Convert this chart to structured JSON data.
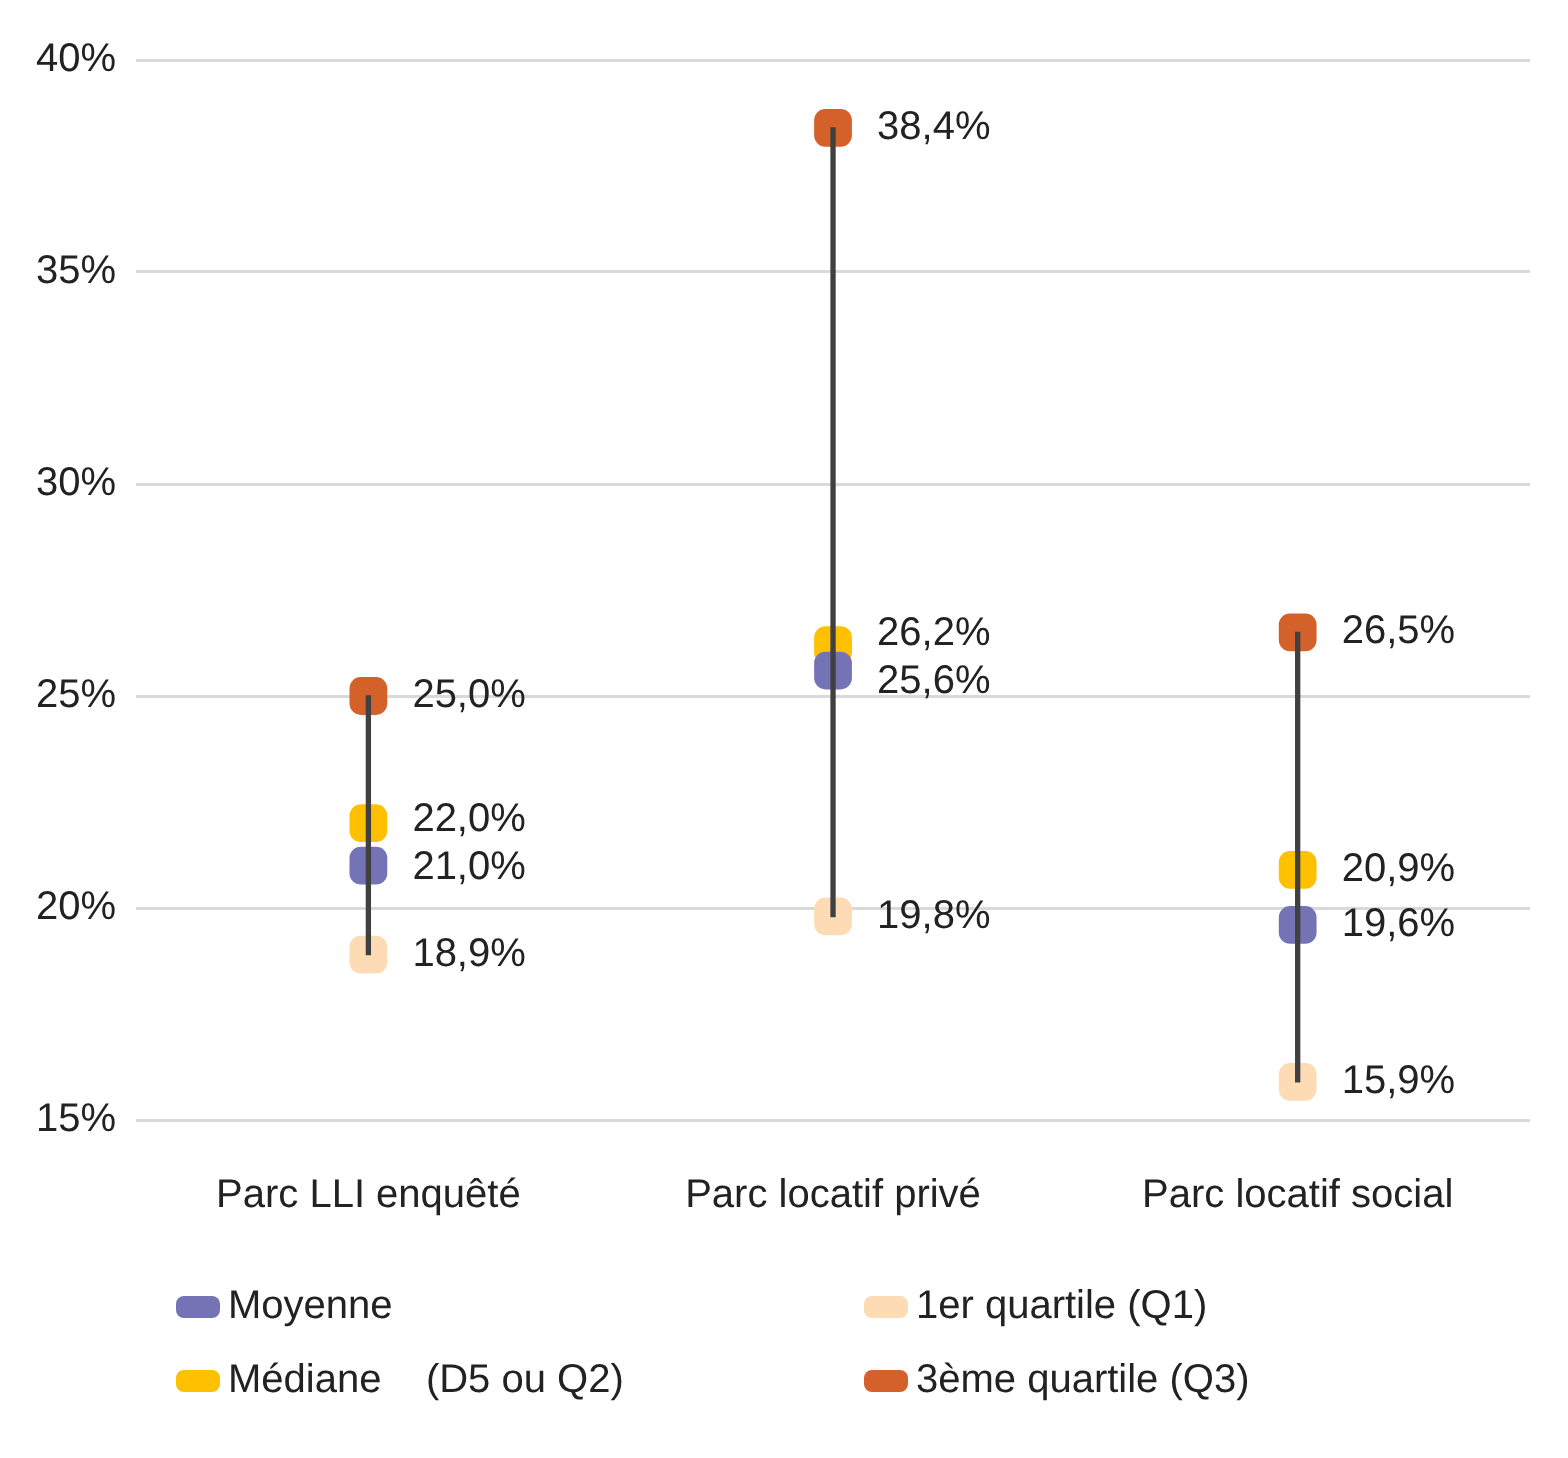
{
  "chart_data": {
    "type": "scatter",
    "categories": [
      "Parc LLI enquêté",
      "Parc locatif privé",
      "Parc locatif social"
    ],
    "ylim": [
      15,
      40
    ],
    "yticks": [
      {
        "value": 15,
        "label": "15%"
      },
      {
        "value": 20,
        "label": "20%"
      },
      {
        "value": 25,
        "label": "25%"
      },
      {
        "value": 30,
        "label": "30%"
      },
      {
        "value": 35,
        "label": "35%"
      },
      {
        "value": 40,
        "label": "40%"
      }
    ],
    "grid": "y",
    "legend": "bottom",
    "marker": "square",
    "series": [
      {
        "type": "bar",
        "color": "#404040",
        "base": [
          18.9,
          19.8,
          15.9
        ],
        "values": [
          6.1,
          18.6,
          10.6
        ]
      },
      {
        "name": "Moyenne",
        "color": "#7473b6",
        "values": [
          21.0,
          25.6,
          19.6
        ],
        "value_labels": [
          "21,0%",
          "25,6%",
          "19,6%"
        ]
      },
      {
        "name": "1er quartile (Q1)",
        "color": "#fddcb5",
        "values": [
          18.9,
          19.8,
          15.9
        ],
        "value_labels": [
          "18,9%",
          "19,8%",
          "15,9%"
        ]
      },
      {
        "name": "Médiane    (D5 ou Q2)",
        "color": "#ffc000",
        "values": [
          22.0,
          26.2,
          20.9
        ],
        "value_labels": [
          "22,0%",
          "26,2%",
          "20,9%"
        ]
      },
      {
        "name": "3ème quartile (Q3)",
        "color": "#d4602a",
        "values": [
          25.0,
          38.4,
          26.5
        ],
        "value_labels": [
          "25,0%",
          "38,4%",
          "26,5%"
        ]
      }
    ]
  }
}
